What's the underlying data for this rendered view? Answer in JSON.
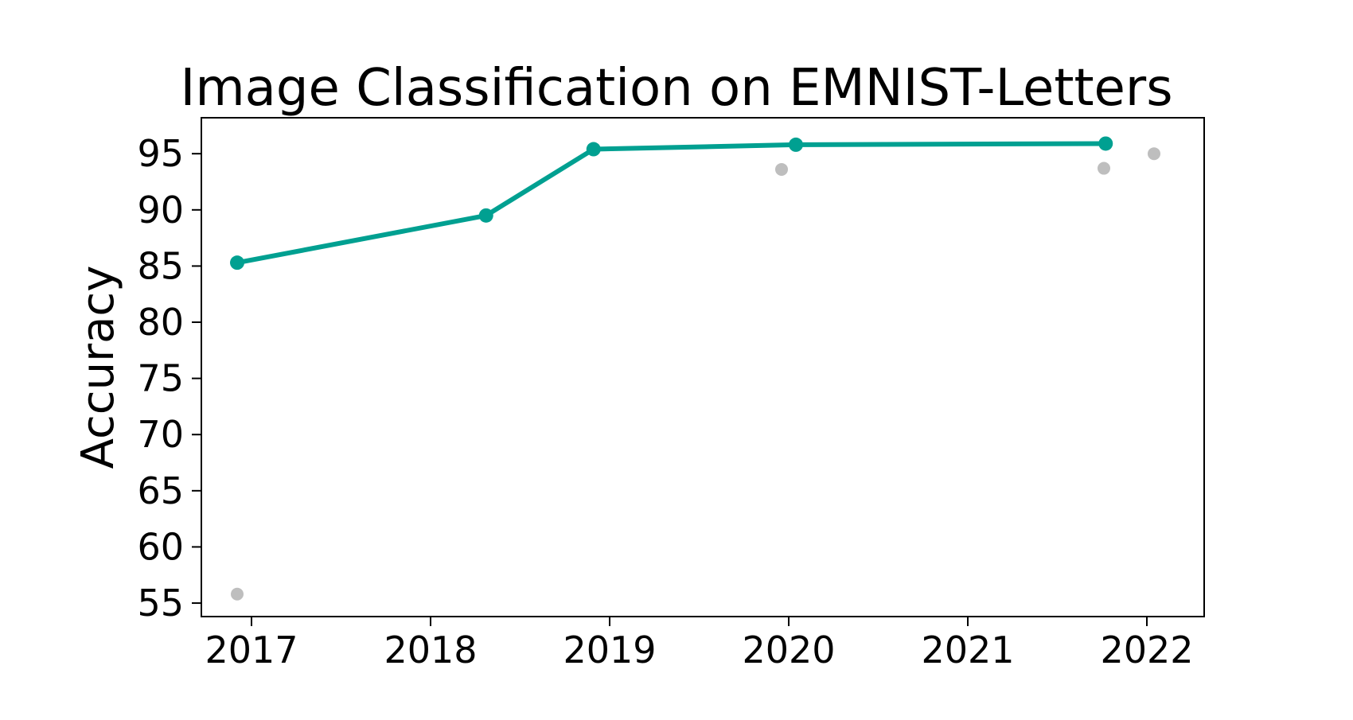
{
  "chart_data": {
    "type": "scatter",
    "title": "Image Classification on EMNIST-Letters",
    "xlabel": "",
    "ylabel": "Accuracy",
    "xlim": [
      2016.72,
      2022.32
    ],
    "ylim": [
      53.8,
      98.2
    ],
    "xticks": [
      "2017",
      "2018",
      "2019",
      "2020",
      "2021",
      "2022"
    ],
    "yticks": [
      "55",
      "60",
      "65",
      "70",
      "75",
      "80",
      "85",
      "90",
      "95"
    ],
    "grid": false,
    "legend": null,
    "series": [
      {
        "role": "frontier",
        "style": "line+markers",
        "color": "#00a091",
        "points": [
          {
            "x": 2016.92,
            "y": 85.3
          },
          {
            "x": 2018.31,
            "y": 89.5
          },
          {
            "x": 2018.91,
            "y": 95.4
          },
          {
            "x": 2020.04,
            "y": 95.8
          },
          {
            "x": 2021.77,
            "y": 95.9
          }
        ]
      },
      {
        "role": "other",
        "style": "markers",
        "color": "#bebebe",
        "points": [
          {
            "x": 2016.92,
            "y": 55.8
          },
          {
            "x": 2019.96,
            "y": 93.6
          },
          {
            "x": 2021.76,
            "y": 93.7
          },
          {
            "x": 2022.04,
            "y": 95.0
          }
        ]
      }
    ]
  }
}
